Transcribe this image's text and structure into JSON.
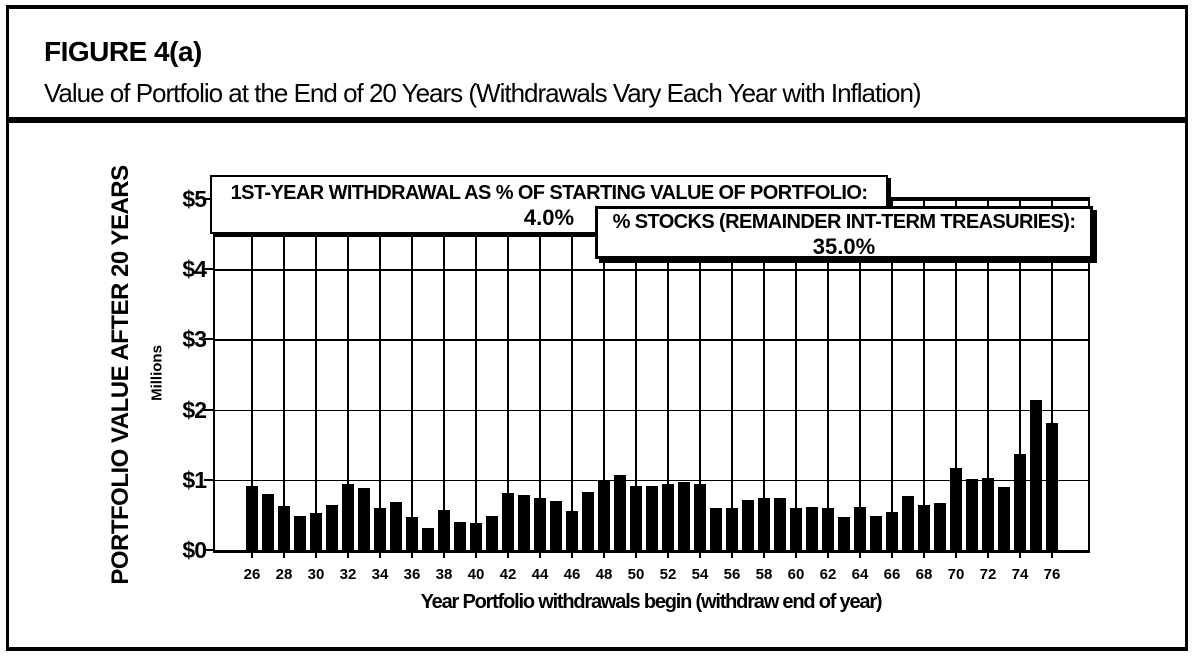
{
  "header": {
    "title": "FIGURE 4(a)",
    "subtitle": "Value of Portfolio at the End of 20 Years (Withdrawals Vary Each Year with Inflation)"
  },
  "annotations": {
    "withdrawal_box": {
      "label": "1ST-YEAR WITHDRAWAL AS % OF STARTING VALUE OF PORTFOLIO:",
      "value": "4.0%"
    },
    "stocks_box": {
      "label": "% STOCKS (REMAINDER INT-TERM TREASURIES):",
      "value": "35.0%"
    }
  },
  "chart_data": {
    "type": "bar",
    "title": "Value of Portfolio at the End of 20 Years (Withdrawals Vary Each Year with Inflation)",
    "xlabel": "Year Portfolio withdrawals begin (withdraw end of year)",
    "ylabel": "PORTFOLIO VALUE AFTER 20 YEARS",
    "ylabel_units": "Millions",
    "ylim": [
      0,
      5
    ],
    "grid": "on",
    "bar_color": "#000000",
    "ytick_labels": [
      "$0",
      "$1",
      "$2",
      "$3",
      "$4",
      "$5"
    ],
    "xtick_labels": [
      "26",
      "28",
      "30",
      "32",
      "34",
      "36",
      "38",
      "40",
      "42",
      "44",
      "46",
      "48",
      "50",
      "52",
      "54",
      "56",
      "58",
      "60",
      "62",
      "64",
      "66",
      "68",
      "70",
      "72",
      "74",
      "76"
    ],
    "categories": [
      26,
      27,
      28,
      29,
      30,
      31,
      32,
      33,
      34,
      35,
      36,
      37,
      38,
      39,
      40,
      41,
      42,
      43,
      44,
      45,
      46,
      47,
      48,
      49,
      50,
      51,
      52,
      53,
      54,
      55,
      56,
      57,
      58,
      59,
      60,
      61,
      62,
      63,
      64,
      65,
      66,
      67,
      68,
      69,
      70,
      71,
      72,
      73,
      74,
      75,
      76
    ],
    "values": [
      0.92,
      0.81,
      0.64,
      0.5,
      0.54,
      0.65,
      0.95,
      0.9,
      0.62,
      0.7,
      0.48,
      0.33,
      0.58,
      0.42,
      0.4,
      0.5,
      0.82,
      0.8,
      0.76,
      0.72,
      0.57,
      0.84,
      1.0,
      1.08,
      0.93,
      0.92,
      0.96,
      0.98,
      0.95,
      0.62,
      0.61,
      0.73,
      0.75,
      0.75,
      0.62,
      0.63,
      0.61,
      0.48,
      0.63,
      0.5,
      0.55,
      0.78,
      0.66,
      0.69,
      1.19,
      1.03,
      1.04,
      0.91,
      1.38,
      2.15,
      1.83
    ]
  }
}
